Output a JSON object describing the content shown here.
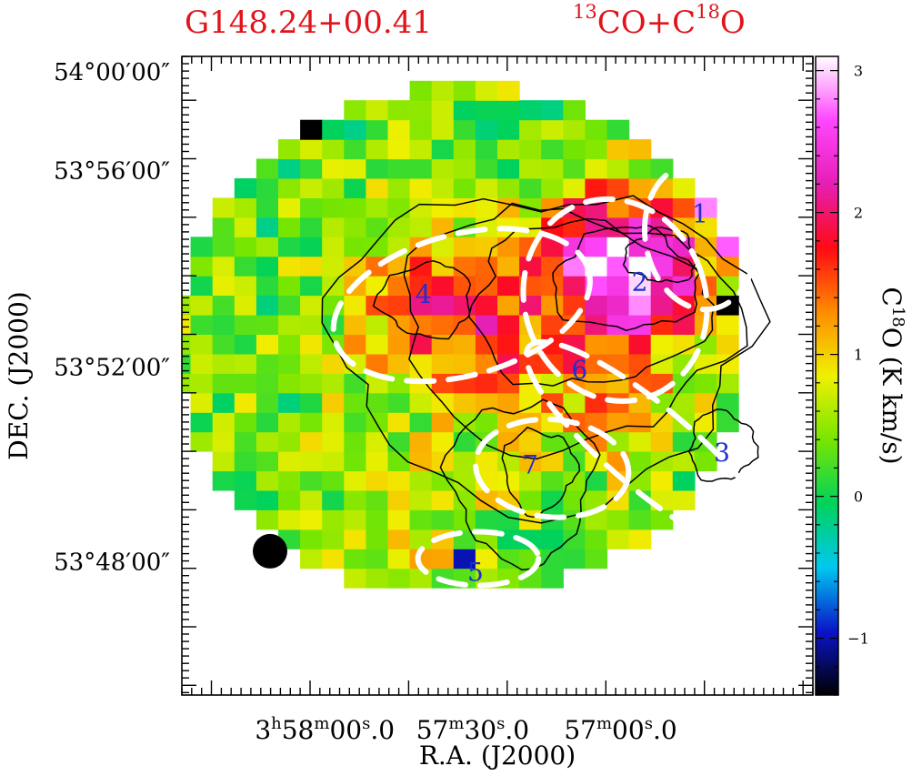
{
  "chart_data": {
    "type": "heatmap",
    "title_left": "G148.24+00.41",
    "title_right": {
      "iso1": "13",
      "sp1": "CO+C",
      "iso2": "18",
      "sp2": "O"
    },
    "xlabel": "R.A. (J2000)",
    "ylabel": "DEC. (J2000)",
    "colorbar_label": "C18O (K km/s)",
    "colorbar_label_parts": {
      "a": "C",
      "sup": "18",
      "b": "O (K km/s)"
    },
    "colorbar_range": [
      -1.4,
      3.1
    ],
    "colorbar_ticks": [
      -1,
      0,
      1,
      2,
      3
    ],
    "colorbar_colors": [
      "#000000",
      "#0a14c8",
      "#00c8f0",
      "#00d25a",
      "#78e600",
      "#f0f000",
      "#ff8c00",
      "#ff0a14",
      "#e61eb4",
      "#ff46ff",
      "#ffffff"
    ],
    "x_ticks": [
      {
        "h": "3",
        "m": "58",
        "s": "00",
        "f": "0"
      },
      {
        "h": "",
        "m": "57",
        "s": "30",
        "f": "0"
      },
      {
        "h": "",
        "m": "57",
        "s": "00",
        "f": "0"
      }
    ],
    "y_ticks": [
      "54°00′00″",
      "53°56′00″",
      "53°52′00″",
      "53°48′00″"
    ],
    "x_range_arcsec": [
      -1152,
      1152
    ],
    "y_range_arcsec": [
      -1000,
      1620
    ],
    "cell_arcsec": 80,
    "map_center_arcsec": [
      -130,
      450
    ],
    "map_radius_arcsec": 1050,
    "gridded_values": "C18O integrated intensity per beam cell, -1.4 to 3.1 K km/s (mostly 0-1.5; peaks ~2-2.5 near clumps 1,2)",
    "high_regions": [
      {
        "x": 520,
        "y": 700,
        "s": 200,
        "a": 1.5
      },
      {
        "x": 430,
        "y": 830,
        "s": 210,
        "a": 1.4
      },
      {
        "x": -230,
        "y": 560,
        "s": 230,
        "a": 1.1
      },
      {
        "x": 80,
        "y": 450,
        "s": 230,
        "a": 0.6
      },
      {
        "x": 440,
        "y": 180,
        "s": 200,
        "a": 0.7
      },
      {
        "x": -330,
        "y": -330,
        "s": 230,
        "a": 0.5
      }
    ],
    "special_cells": [
      {
        "x": -670,
        "y": 1350,
        "v": -1.4
      },
      {
        "x": 850,
        "y": 580,
        "v": -1.4
      },
      {
        "x": 490,
        "y": 700,
        "v": 3.0
      },
      {
        "x": 730,
        "y": 1020,
        "v": 2.8
      },
      {
        "x": 810,
        "y": 870,
        "v": 2.7
      },
      {
        "x": -110,
        "y": -470,
        "v": -1.0
      }
    ],
    "clumps": [
      {
        "label": "1",
        "x": 740,
        "y": 980
      },
      {
        "label": "2",
        "x": 520,
        "y": 700
      },
      {
        "label": "3",
        "x": 820,
        "y": 0
      },
      {
        "label": "4",
        "x": -270,
        "y": 650
      },
      {
        "label": "5",
        "x": -80,
        "y": -490
      },
      {
        "label": "6",
        "x": 300,
        "y": 340
      },
      {
        "label": "7",
        "x": 120,
        "y": -50
      }
    ],
    "ellipses": [
      {
        "x": 740,
        "y": 880,
        "a": 200,
        "b": 300,
        "rot": -10
      },
      {
        "x": 430,
        "y": 620,
        "a": 330,
        "b": 420,
        "rot": -20
      },
      {
        "x": -130,
        "y": 600,
        "a": 480,
        "b": 290,
        "rot": -15
      },
      {
        "x": 200,
        "y": -70,
        "a": 280,
        "b": 200,
        "rot": 5
      },
      {
        "x": 560,
        "y": 10,
        "a": 580,
        "b": 170,
        "rot": 40
      },
      {
        "x": -70,
        "y": -440,
        "a": 220,
        "b": 110,
        "rot": 0
      }
    ],
    "beam": {
      "x": -830,
      "y": -410,
      "r": 63
    },
    "contours_13CO": "black contours of 13CO integrated intensity (5 levels)"
  }
}
